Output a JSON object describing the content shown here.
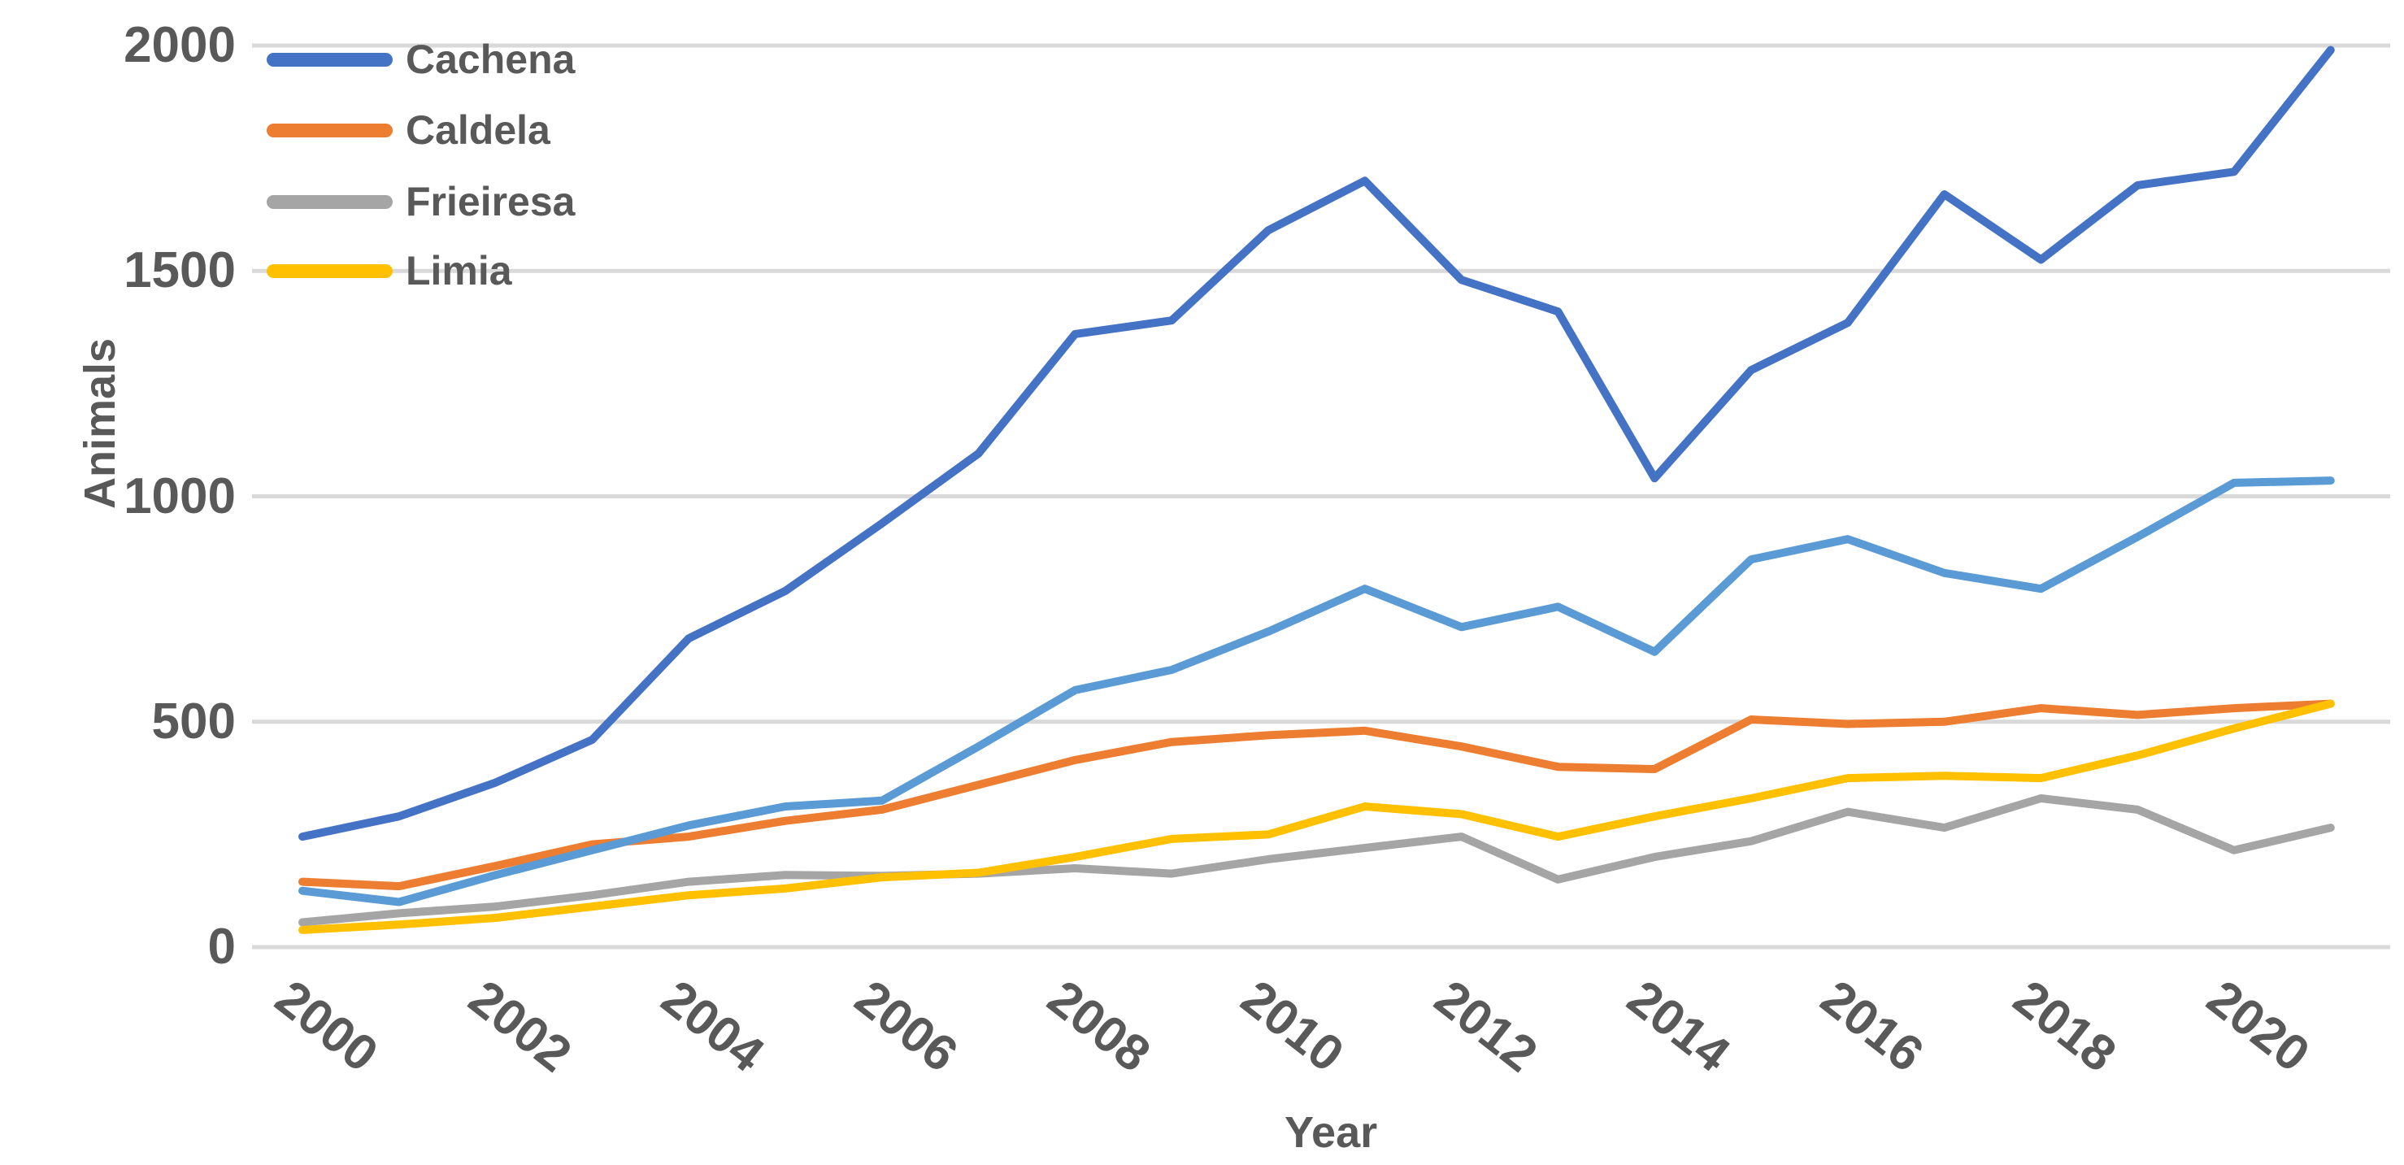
{
  "figure": {
    "y_axis_title": "Animals",
    "x_axis_title": "Year"
  },
  "legend": {
    "items": [
      {
        "label": "Cachena",
        "color": "#4472C4"
      },
      {
        "label": "Caldela",
        "color": "#ED7D31"
      },
      {
        "label": "Frieiresa",
        "color": "#A5A5A5"
      },
      {
        "label": "Limia",
        "color": "#FFC000"
      }
    ]
  },
  "chart_data": {
    "type": "line",
    "title": "",
    "xlabel": "Year",
    "ylabel": "Animals",
    "x_labels": [
      "2000",
      "2002",
      "2004",
      "2006",
      "2008",
      "2010",
      "2012",
      "2014",
      "2016",
      "2018",
      "2020"
    ],
    "x": [
      2000,
      2001,
      2002,
      2003,
      2004,
      2005,
      2006,
      2007,
      2008,
      2009,
      2010,
      2011,
      2012,
      2013,
      2014,
      2015,
      2016,
      2017,
      2018,
      2019,
      2020,
      2021
    ],
    "ylim": [
      0,
      2000
    ],
    "yticks": [
      0,
      500,
      1000,
      1500,
      2000
    ],
    "grid": true,
    "gridline_color": "#D9D9D9",
    "text_color": "#595959",
    "legend_position": "top-left-inset",
    "series": [
      {
        "name": "Cachena",
        "color": "#4472C4",
        "legend_visible": true,
        "values": [
          245,
          290,
          365,
          460,
          685,
          790,
          940,
          1095,
          1360,
          1390,
          1590,
          1700,
          1480,
          1410,
          1040,
          1280,
          1385,
          1670,
          1525,
          1690,
          1720,
          1990
        ]
      },
      {
        "name": "Caldela",
        "color": "#ED7D31",
        "legend_visible": true,
        "values": [
          145,
          135,
          180,
          228,
          245,
          280,
          305,
          360,
          415,
          455,
          470,
          480,
          445,
          400,
          395,
          505,
          495,
          500,
          530,
          515,
          530,
          540
        ]
      },
      {
        "name": "Frieiresa",
        "color": "#A5A5A5",
        "legend_visible": true,
        "values": [
          55,
          75,
          90,
          115,
          145,
          160,
          158,
          163,
          175,
          163,
          195,
          220,
          245,
          150,
          200,
          235,
          300,
          265,
          330,
          305,
          215,
          265
        ]
      },
      {
        "name": "Limia",
        "color": "#FFC000",
        "legend_visible": true,
        "values": [
          38,
          50,
          65,
          90,
          115,
          130,
          155,
          165,
          200,
          240,
          250,
          312,
          295,
          245,
          290,
          330,
          375,
          380,
          375,
          425,
          485,
          540
        ]
      },
      {
        "name": "",
        "color": "#5B9BD5",
        "legend_visible": false,
        "values": [
          125,
          100,
          160,
          215,
          270,
          312,
          325,
          445,
          570,
          615,
          700,
          795,
          710,
          755,
          655,
          860,
          905,
          830,
          795,
          910,
          1030,
          1035
        ]
      }
    ]
  }
}
